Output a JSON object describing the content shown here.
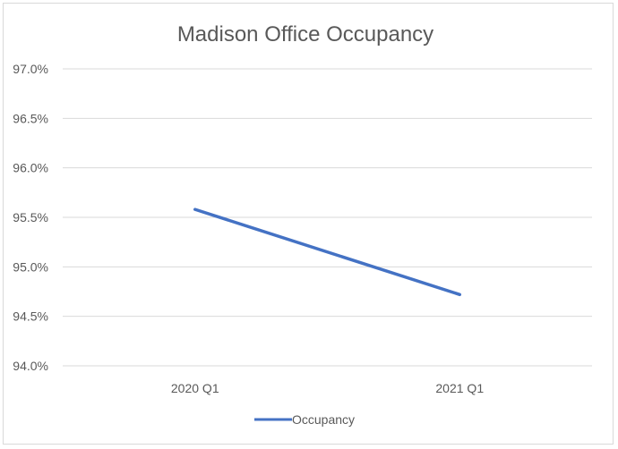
{
  "chart_data": {
    "type": "line",
    "title": "Madison Office Occupancy",
    "categories": [
      "2020 Q1",
      "2021 Q1"
    ],
    "series": [
      {
        "name": "Occupancy",
        "values": [
          95.58,
          94.72
        ],
        "color": "#4472c4"
      }
    ],
    "ylim": [
      94.0,
      97.0
    ],
    "ytick_labels": [
      "94.0%",
      "94.5%",
      "95.0%",
      "95.5%",
      "96.0%",
      "96.5%",
      "97.0%"
    ],
    "grid": true,
    "legend_position": "bottom",
    "xlabel": "",
    "ylabel": ""
  }
}
